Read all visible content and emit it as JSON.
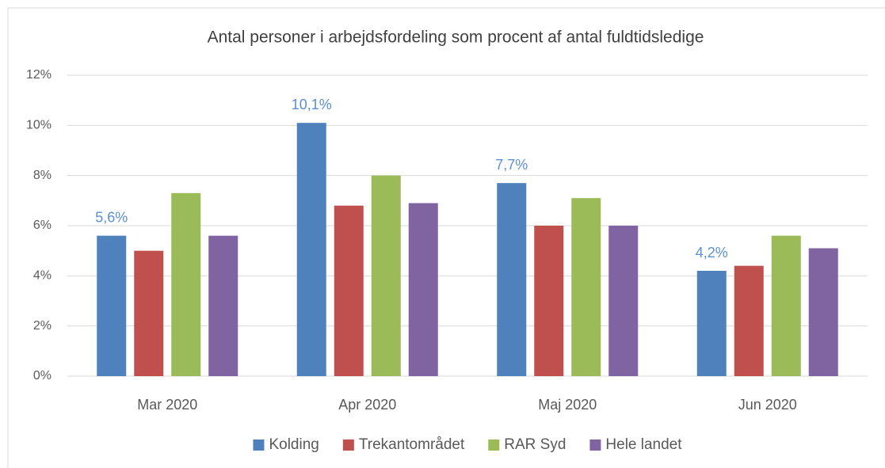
{
  "chart_data": {
    "type": "bar",
    "title": "Antal personer i arbejdsfordeling som procent af antal fuldtidsledige",
    "categories": [
      "Mar 2020",
      "Apr 2020",
      "Maj 2020",
      "Jun 2020"
    ],
    "series": [
      {
        "name": "Kolding",
        "color": "#4f81bd",
        "values": [
          5.6,
          10.1,
          7.7,
          4.2
        ],
        "value_labels": [
          "5,6%",
          "10,1%",
          "7,7%",
          "4,2%"
        ]
      },
      {
        "name": "Trekantområdet",
        "color": "#c0504d",
        "values": [
          5.0,
          6.8,
          6.0,
          4.4
        ]
      },
      {
        "name": "RAR Syd",
        "color": "#9bbb59",
        "values": [
          7.3,
          8.0,
          7.1,
          5.6
        ]
      },
      {
        "name": "Hele landet",
        "color": "#8064a2",
        "values": [
          5.6,
          6.9,
          6.0,
          5.1
        ]
      }
    ],
    "ylim": [
      0,
      12
    ],
    "yticks": [
      {
        "value": 0,
        "label": "0%"
      },
      {
        "value": 2,
        "label": "2%"
      },
      {
        "value": 4,
        "label": "4%"
      },
      {
        "value": 6,
        "label": "6%"
      },
      {
        "value": 8,
        "label": "8%"
      },
      {
        "value": 10,
        "label": "10%"
      },
      {
        "value": 12,
        "label": "12%"
      }
    ],
    "grid": true,
    "legend": "bottom"
  }
}
